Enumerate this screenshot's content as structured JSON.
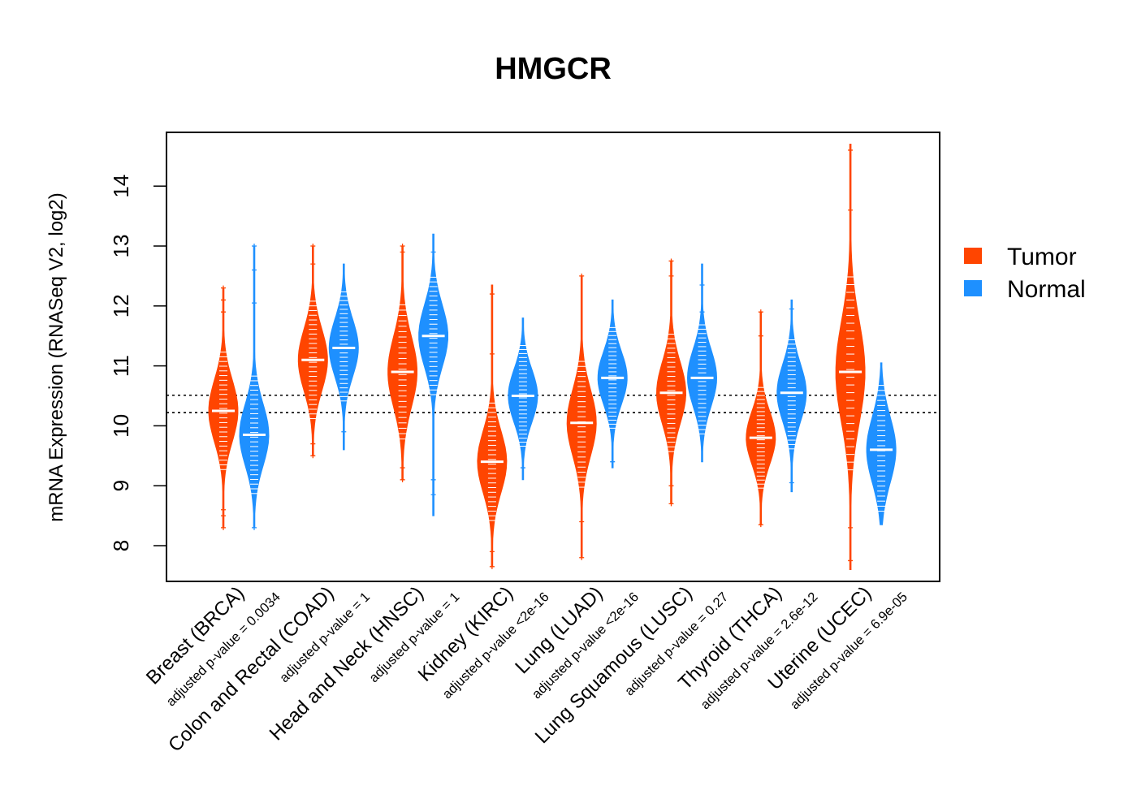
{
  "chart_data": {
    "type": "violin",
    "title": "HMGCR",
    "ylabel": "mRNA Expression (RNASeq V2, log2)",
    "xlabel": "",
    "ylim": [
      7.4,
      14.9
    ],
    "yticks": [
      8,
      9,
      10,
      11,
      12,
      13,
      14
    ],
    "reference_lines": [
      10.22,
      10.51
    ],
    "legend": {
      "position": "right",
      "items": [
        {
          "name": "Tumor",
          "color": "#FF4500"
        },
        {
          "name": "Normal",
          "color": "#1E90FF"
        }
      ]
    },
    "groups": [
      {
        "label": "Breast (BRCA)",
        "pvalue_label": "adjusted p-value = 0.0034",
        "tumor": {
          "median": 10.25,
          "q1": 9.9,
          "q3": 10.6,
          "min": 8.3,
          "max": 12.3,
          "outliers": [
            8.3,
            8.5,
            8.6,
            11.9,
            12.1,
            12.3
          ]
        },
        "normal": {
          "median": 9.85,
          "q1": 9.5,
          "q3": 10.2,
          "min": 8.3,
          "max": 13.0,
          "outliers": [
            8.3,
            12.05,
            12.6,
            13.0
          ]
        }
      },
      {
        "label": "Colon and Rectal (COAD)",
        "pvalue_label": "adjusted p-value = 1",
        "tumor": {
          "median": 11.1,
          "q1": 10.75,
          "q3": 11.45,
          "min": 9.5,
          "max": 13.0,
          "outliers": [
            9.5,
            9.7,
            12.7,
            13.0
          ]
        },
        "normal": {
          "median": 11.3,
          "q1": 11.0,
          "q3": 11.65,
          "min": 9.6,
          "max": 12.7,
          "outliers": [
            9.9
          ]
        }
      },
      {
        "label": "Head and Neck (HNSC)",
        "pvalue_label": "adjusted p-value = 1",
        "tumor": {
          "median": 10.9,
          "q1": 10.5,
          "q3": 11.3,
          "min": 9.1,
          "max": 13.0,
          "outliers": [
            9.1,
            9.3,
            12.9,
            13.0
          ]
        },
        "normal": {
          "median": 11.5,
          "q1": 11.15,
          "q3": 11.85,
          "min": 8.5,
          "max": 13.2,
          "outliers": [
            8.85,
            9.1,
            12.9
          ]
        }
      },
      {
        "label": "Kidney (KIRC)",
        "pvalue_label": "adjusted p-value <2e-16",
        "tumor": {
          "median": 9.4,
          "q1": 9.05,
          "q3": 9.75,
          "min": 7.65,
          "max": 12.35,
          "outliers": [
            7.65,
            7.9,
            11.2,
            12.2
          ]
        },
        "normal": {
          "median": 10.5,
          "q1": 10.2,
          "q3": 10.8,
          "min": 9.1,
          "max": 11.8,
          "outliers": [
            9.3
          ]
        }
      },
      {
        "label": "Lung (LUAD)",
        "pvalue_label": "adjusted p-value <2e-16",
        "tumor": {
          "median": 10.05,
          "q1": 9.65,
          "q3": 10.4,
          "min": 7.8,
          "max": 12.5,
          "outliers": [
            7.8,
            8.4,
            12.5
          ]
        },
        "normal": {
          "median": 10.8,
          "q1": 10.5,
          "q3": 11.1,
          "min": 9.3,
          "max": 12.1,
          "outliers": [
            9.4
          ]
        }
      },
      {
        "label": "Lung Squamous (LUSC)",
        "pvalue_label": "adjusted p-value = 0.27",
        "tumor": {
          "median": 10.55,
          "q1": 10.2,
          "q3": 10.9,
          "min": 8.7,
          "max": 12.75,
          "outliers": [
            8.7,
            9.0,
            12.5,
            12.75
          ]
        },
        "normal": {
          "median": 10.8,
          "q1": 10.45,
          "q3": 11.1,
          "min": 9.4,
          "max": 12.7,
          "outliers": [
            11.9,
            12.35
          ]
        }
      },
      {
        "label": "Thyroid (THCA)",
        "pvalue_label": "adjusted p-value = 2.6e-12",
        "tumor": {
          "median": 9.8,
          "q1": 9.5,
          "q3": 10.1,
          "min": 8.35,
          "max": 11.9,
          "outliers": [
            8.35,
            11.5,
            11.9
          ]
        },
        "normal": {
          "median": 10.55,
          "q1": 10.2,
          "q3": 10.85,
          "min": 8.9,
          "max": 12.1,
          "outliers": [
            9.05,
            11.95
          ]
        }
      },
      {
        "label": "Uterine (UCEC)",
        "pvalue_label": "adjusted p-value = 6.9e-05",
        "tumor": {
          "median": 10.9,
          "q1": 10.3,
          "q3": 11.45,
          "min": 7.6,
          "max": 14.7,
          "outliers": [
            7.75,
            8.3,
            13.6,
            14.6
          ]
        },
        "normal": {
          "median": 9.6,
          "q1": 9.25,
          "q3": 10.0,
          "min": 8.35,
          "max": 11.05,
          "outliers": []
        }
      }
    ]
  }
}
